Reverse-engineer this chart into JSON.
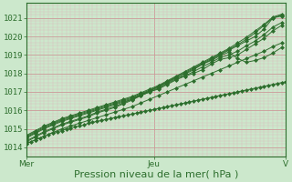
{
  "bg_color": "#cce8cc",
  "plot_bg_color": "#cce8cc",
  "grid_color_major": "#cc9999",
  "grid_color_minor": "#ddbbbb",
  "line_color": "#2d6e2d",
  "ylim": [
    1013.5,
    1021.8
  ],
  "ylabel_ticks": [
    1014,
    1015,
    1016,
    1017,
    1018,
    1019,
    1020,
    1021
  ],
  "xlabel": "Pression niveau de la mer( hPa )",
  "xlabel_fontsize": 8,
  "tick_fontsize": 6.5,
  "xtick_labels": [
    "Mer",
    "Jeu",
    "V"
  ],
  "title": "",
  "lines": [
    {
      "x": [
        0,
        1,
        2,
        3,
        4,
        5,
        6,
        7,
        8,
        9,
        10,
        11,
        12,
        13,
        14,
        15,
        16,
        17,
        18,
        19,
        20,
        21,
        22,
        23,
        24,
        25,
        26,
        27,
        28,
        29,
        30,
        31,
        32,
        33,
        34,
        35,
        36,
        37,
        38,
        39,
        40,
        41,
        42,
        43,
        44,
        45,
        46,
        47,
        48,
        49,
        50,
        51,
        52,
        53,
        54,
        55,
        56,
        57,
        58,
        59
      ],
      "y": [
        1014.2,
        1014.3,
        1014.4,
        1014.5,
        1014.6,
        1014.7,
        1014.8,
        1014.85,
        1014.9,
        1015.0,
        1015.05,
        1015.1,
        1015.15,
        1015.2,
        1015.3,
        1015.35,
        1015.4,
        1015.45,
        1015.5,
        1015.55,
        1015.6,
        1015.65,
        1015.7,
        1015.75,
        1015.8,
        1015.85,
        1015.9,
        1015.95,
        1016.0,
        1016.05,
        1016.1,
        1016.15,
        1016.2,
        1016.25,
        1016.3,
        1016.35,
        1016.4,
        1016.45,
        1016.5,
        1016.55,
        1016.6,
        1016.65,
        1016.7,
        1016.75,
        1016.8,
        1016.85,
        1016.9,
        1016.95,
        1017.0,
        1017.05,
        1017.1,
        1017.15,
        1017.2,
        1017.25,
        1017.3,
        1017.35,
        1017.4,
        1017.45,
        1017.5,
        1017.55
      ]
    },
    {
      "x": [
        0,
        2,
        4,
        6,
        8,
        10,
        12,
        14,
        16,
        18,
        20,
        22,
        24,
        26,
        28,
        30,
        32,
        34,
        36,
        38,
        40,
        42,
        44,
        46,
        48,
        50,
        52,
        54,
        56,
        58
      ],
      "y": [
        1014.3,
        1014.55,
        1014.8,
        1015.0,
        1015.2,
        1015.35,
        1015.5,
        1015.65,
        1015.85,
        1016.0,
        1016.15,
        1016.35,
        1016.55,
        1016.8,
        1017.0,
        1017.2,
        1017.45,
        1017.7,
        1017.95,
        1018.2,
        1018.5,
        1018.75,
        1019.0,
        1019.25,
        1019.5,
        1019.75,
        1020.0,
        1020.4,
        1021.0,
        1021.15
      ]
    },
    {
      "x": [
        0,
        2,
        4,
        6,
        8,
        10,
        12,
        14,
        16,
        18,
        20,
        22,
        24,
        26,
        28,
        30,
        32,
        34,
        36,
        38,
        40,
        42,
        44,
        46,
        48,
        50,
        52,
        54,
        56,
        58
      ],
      "y": [
        1014.35,
        1014.6,
        1014.85,
        1015.05,
        1015.25,
        1015.4,
        1015.55,
        1015.7,
        1015.9,
        1016.05,
        1016.2,
        1016.4,
        1016.6,
        1016.85,
        1017.05,
        1017.3,
        1017.55,
        1017.8,
        1018.05,
        1018.3,
        1018.55,
        1018.8,
        1019.05,
        1019.3,
        1019.55,
        1019.85,
        1020.2,
        1020.6,
        1021.0,
        1021.1
      ]
    },
    {
      "x": [
        0,
        2,
        4,
        6,
        8,
        10,
        12,
        14,
        16,
        18,
        20,
        22,
        24,
        26,
        28,
        30,
        32,
        34,
        36,
        38,
        40,
        42,
        44,
        46,
        48,
        50,
        52,
        54,
        56,
        58
      ],
      "y": [
        1014.5,
        1014.75,
        1015.0,
        1015.2,
        1015.4,
        1015.55,
        1015.7,
        1015.85,
        1016.0,
        1016.15,
        1016.3,
        1016.45,
        1016.6,
        1016.8,
        1017.0,
        1017.15,
        1017.4,
        1017.65,
        1017.85,
        1018.1,
        1018.35,
        1018.6,
        1018.85,
        1019.0,
        1019.2,
        1019.5,
        1019.75,
        1020.1,
        1020.5,
        1020.75
      ]
    },
    {
      "x": [
        0,
        2,
        4,
        6,
        8,
        10,
        12,
        14,
        16,
        18,
        20,
        22,
        24,
        26,
        28,
        30,
        32,
        34,
        36,
        38,
        40,
        42,
        44,
        46,
        48,
        50,
        52,
        54,
        56,
        58
      ],
      "y": [
        1014.55,
        1014.8,
        1015.05,
        1015.25,
        1015.45,
        1015.6,
        1015.75,
        1015.9,
        1016.05,
        1016.2,
        1016.35,
        1016.5,
        1016.65,
        1016.85,
        1017.05,
        1017.25,
        1017.5,
        1017.75,
        1017.85,
        1018.0,
        1018.2,
        1018.5,
        1018.75,
        1018.85,
        1019.0,
        1019.3,
        1019.6,
        1019.9,
        1020.3,
        1020.6
      ]
    },
    {
      "x": [
        0,
        2,
        4,
        6,
        8,
        10,
        12,
        14,
        16,
        18,
        20,
        22,
        24,
        26,
        28,
        30,
        32,
        34,
        36,
        38,
        40,
        42,
        44,
        46,
        48,
        50,
        52,
        54,
        56,
        58
      ],
      "y": [
        1014.6,
        1014.85,
        1015.1,
        1015.3,
        1015.5,
        1015.65,
        1015.8,
        1015.95,
        1016.1,
        1016.25,
        1016.4,
        1016.55,
        1016.7,
        1016.9,
        1017.1,
        1017.3,
        1017.55,
        1017.8,
        1018.0,
        1018.25,
        1018.5,
        1018.7,
        1018.95,
        1019.15,
        1018.8,
        1018.6,
        1018.7,
        1018.85,
        1019.1,
        1019.4
      ]
    },
    {
      "x": [
        0,
        2,
        4,
        6,
        8,
        10,
        12,
        14,
        16,
        18,
        20,
        22,
        24,
        26,
        28,
        30,
        32,
        34,
        36,
        38,
        40,
        42,
        44,
        46,
        48,
        50,
        52,
        54,
        56,
        58
      ],
      "y": [
        1014.65,
        1014.9,
        1015.15,
        1015.35,
        1015.55,
        1015.7,
        1015.85,
        1016.0,
        1016.15,
        1016.3,
        1016.45,
        1016.6,
        1016.75,
        1016.95,
        1017.15,
        1017.35,
        1017.6,
        1017.85,
        1018.1,
        1018.35,
        1018.6,
        1018.85,
        1019.1,
        1019.35,
        1019.65,
        1019.95,
        1020.3,
        1020.65,
        1021.05,
        1021.2
      ]
    },
    {
      "x": [
        0,
        2,
        4,
        6,
        8,
        10,
        12,
        14,
        16,
        18,
        20,
        22,
        24,
        26,
        28,
        30,
        32,
        34,
        36,
        38,
        40,
        42,
        44,
        46,
        48,
        50,
        52,
        54,
        56,
        58
      ],
      "y": [
        1014.2,
        1014.4,
        1014.6,
        1014.8,
        1015.0,
        1015.15,
        1015.3,
        1015.45,
        1015.6,
        1015.75,
        1015.9,
        1016.05,
        1016.2,
        1016.4,
        1016.6,
        1016.8,
        1017.0,
        1017.2,
        1017.4,
        1017.6,
        1017.8,
        1018.0,
        1018.2,
        1018.4,
        1018.6,
        1018.8,
        1019.0,
        1019.2,
        1019.45,
        1019.65
      ]
    }
  ]
}
